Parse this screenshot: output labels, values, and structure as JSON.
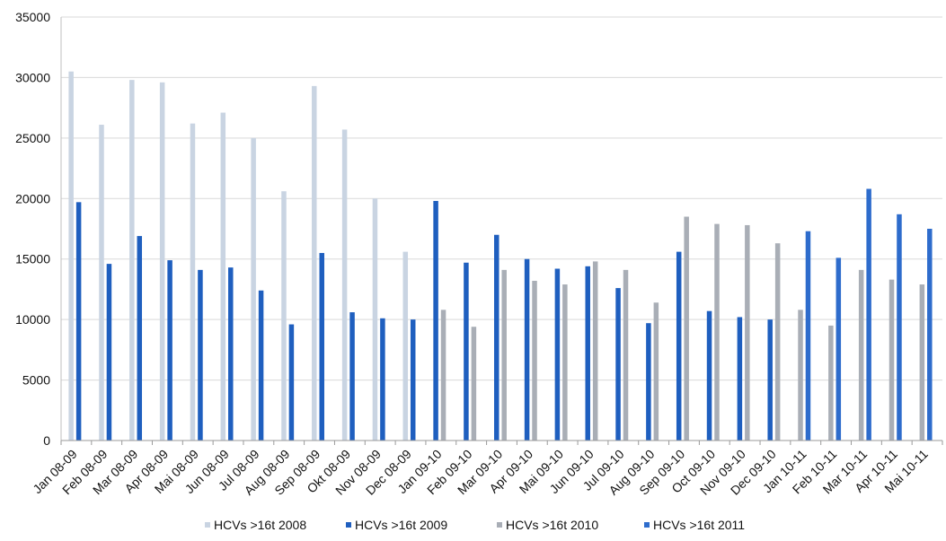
{
  "chart_data": {
    "type": "bar",
    "title": "",
    "xlabel": "",
    "ylabel": "",
    "ylim": [
      0,
      35000
    ],
    "yticks": [
      0,
      5000,
      10000,
      15000,
      20000,
      25000,
      30000,
      35000
    ],
    "grid": true,
    "legend_position": "bottom",
    "categories": [
      "Jan 08-09",
      "Feb 08-09",
      "Mar 08-09",
      "Apr 08-09",
      "Mai 08-09",
      "Jun 08-09",
      "Jul 08-09",
      "Aug 08-09",
      "Sep 08-09",
      "Okt 08-09",
      "Nov 08-09",
      "Dec 08-09",
      "Jan 09-10",
      "Feb 09-10",
      "Mar 09-10",
      "Apr 09-10",
      "Mai 09-10",
      "Jun 09-10",
      "Jul 09-10",
      "Aug 09-10",
      "Sep 09-10",
      "Oct 09-10",
      "Nov 09-10",
      "Dec 09-10",
      "Jan 10-11",
      "Feb 10-11",
      "Mar 10-11",
      "Apr 10-11",
      "Mai 10-11"
    ],
    "series": [
      {
        "name": "HCVs >16t 2008",
        "color": "#c9d4e2",
        "values": [
          30500,
          26100,
          29800,
          29600,
          26200,
          27100,
          25000,
          20600,
          29300,
          25700,
          20000,
          15600,
          null,
          null,
          null,
          null,
          null,
          null,
          null,
          null,
          null,
          null,
          null,
          null,
          null,
          null,
          null,
          null,
          null
        ]
      },
      {
        "name": "HCVs >16t 2009",
        "color": "#1f5fbf",
        "values": [
          19700,
          14600,
          16900,
          14900,
          14100,
          14300,
          12400,
          9600,
          15500,
          10600,
          10100,
          10000,
          19800,
          14700,
          17000,
          15000,
          14200,
          14400,
          12600,
          9700,
          15600,
          10700,
          10200,
          10000,
          null,
          null,
          null,
          null,
          null
        ]
      },
      {
        "name": "HCVs >16t 2010",
        "color": "#a9aeb6",
        "values": [
          null,
          null,
          null,
          null,
          null,
          null,
          null,
          null,
          null,
          null,
          null,
          null,
          10800,
          9400,
          14100,
          13200,
          12900,
          14800,
          14100,
          11400,
          18500,
          17900,
          17800,
          16300,
          10800,
          9500,
          14100,
          13300,
          12900
        ]
      },
      {
        "name": "HCVs >16t 2011",
        "color": "#2e6ccc",
        "values": [
          null,
          null,
          null,
          null,
          null,
          null,
          null,
          null,
          null,
          null,
          null,
          null,
          null,
          null,
          null,
          null,
          null,
          null,
          null,
          null,
          null,
          null,
          null,
          null,
          17300,
          15100,
          20800,
          18700,
          17500
        ]
      }
    ]
  }
}
